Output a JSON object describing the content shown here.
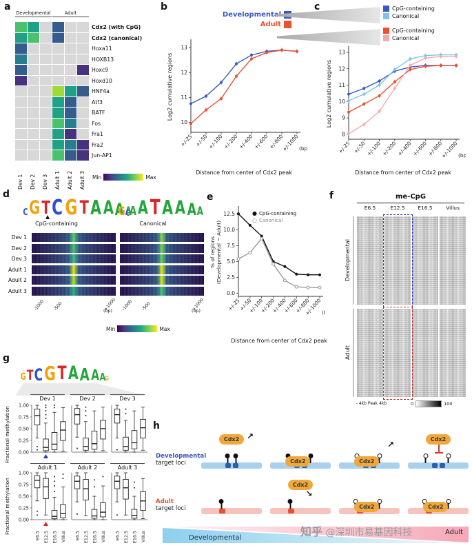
{
  "watermark": {
    "brand": "知乎",
    "text": " @深圳市易基因科技"
  },
  "panel_a": {
    "label": "a",
    "groups": [
      {
        "name": "Developmental",
        "span": 3
      },
      {
        "name": "Adult",
        "span": 3
      }
    ],
    "col_labels": [
      "Dev 1",
      "Dev 2",
      "Dev 3",
      "Adult 1",
      "Adult 2",
      "Adult 3"
    ],
    "row_labels": [
      "Cdx2 (with CpG)",
      "Cdx2 (canonical)",
      "Hoxa11",
      "HOXB13",
      "Hoxc9",
      "Hoxd10",
      "HNF4a",
      "Atf3",
      "BATF",
      "Fos",
      "Fra1",
      "Fra2",
      "Jun-AP1"
    ],
    "bold_rows": [
      0,
      1
    ],
    "cells": [
      [
        "#4ac16d",
        "#1fa187",
        "#d8d8d8",
        "#365c8d",
        "#d8d8d8",
        "#d8d8d8"
      ],
      [
        "#1fa187",
        "#4ac16d",
        "#d8d8d8",
        "#365c8d",
        "#d8d8d8",
        "#d8d8d8"
      ],
      [
        "#365c8d",
        "#d8d8d8",
        "#d8d8d8",
        "#d8d8d8",
        "#d8d8d8",
        "#d8d8d8"
      ],
      [
        "#277f8e",
        "#d8d8d8",
        "#d8d8d8",
        "#d8d8d8",
        "#d8d8d8",
        "#d8d8d8"
      ],
      [
        "#365c8d",
        "#d8d8d8",
        "#d8d8d8",
        "#d8d8d8",
        "#d8d8d8",
        "#46327e"
      ],
      [
        "#46327e",
        "#d8d8d8",
        "#d8d8d8",
        "#d8d8d8",
        "#d8d8d8",
        "#d8d8d8"
      ],
      [
        "#d8d8d8",
        "#d8d8d8",
        "#d8d8d8",
        "#a0da39",
        "#1fa187",
        "#365c8d"
      ],
      [
        "#d8d8d8",
        "#d8d8d8",
        "#d8d8d8",
        "#1fa187",
        "#365c8d",
        "#d8d8d8"
      ],
      [
        "#d8d8d8",
        "#d8d8d8",
        "#d8d8d8",
        "#1fa187",
        "#365c8d",
        "#d8d8d8"
      ],
      [
        "#d8d8d8",
        "#d8d8d8",
        "#d8d8d8",
        "#4ac16d",
        "#277f8e",
        "#d8d8d8"
      ],
      [
        "#d8d8d8",
        "#d8d8d8",
        "#d8d8d8",
        "#1fa187",
        "#46327e",
        "#d8d8d8"
      ],
      [
        "#d8d8d8",
        "#d8d8d8",
        "#d8d8d8",
        "#1fa187",
        "#277f8e",
        "#46327e"
      ],
      [
        "#d8d8d8",
        "#d8d8d8",
        "#d8d8d8",
        "#4ac16d",
        "#365c8d",
        "#46327e"
      ]
    ],
    "legend": {
      "min": "Min",
      "max": "Max"
    }
  },
  "panel_b": {
    "label": "b",
    "legend": [
      {
        "name": "Developmental",
        "color": "#3a57c4"
      },
      {
        "name": "Adult",
        "color": "#e8502e"
      }
    ],
    "chart": {
      "type": "line",
      "x_labels": [
        "+/-25",
        "+/-50",
        "+/-100",
        "+/-200",
        "+/-400",
        "+/-600",
        "+/-800",
        "+/-1000"
      ],
      "x_unit": "(bp)",
      "xlabel": "Distance from center of Cdx2 peak",
      "ylabel": "Log2 cumulative regions",
      "yticks": [
        10,
        11,
        12,
        13
      ],
      "ylim": [
        9.6,
        13.25
      ],
      "series": [
        {
          "name": "Developmental",
          "color": "#3a57c4",
          "values": [
            10.75,
            11.05,
            11.6,
            12.35,
            12.7,
            12.85,
            12.9,
            12.85
          ]
        },
        {
          "name": "Adult",
          "color": "#e8502e",
          "values": [
            9.95,
            10.5,
            10.95,
            11.85,
            12.55,
            12.8,
            12.9,
            12.85
          ]
        }
      ]
    }
  },
  "panel_c": {
    "label": "c",
    "legend_groups": [
      {
        "items": [
          {
            "name": "CpG-containing",
            "color": "#3a57c4"
          },
          {
            "name": "Canonical",
            "color": "#7fc3e8"
          }
        ]
      },
      {
        "items": [
          {
            "name": "CpG-containing",
            "color": "#e8502e"
          },
          {
            "name": "Canonical",
            "color": "#f4a9ad"
          }
        ]
      }
    ],
    "chart": {
      "type": "line",
      "x_labels": [
        "+/-25",
        "+/-50",
        "+/-100",
        "+/-200",
        "+/-400",
        "+/-600",
        "+/-800",
        "+/-1000"
      ],
      "x_unit": "(bp)",
      "xlabel": "Distance from center of Cdx2 peak",
      "ylabel": "Log2 cumulative regions",
      "yticks": [
        8,
        9,
        10,
        11,
        12,
        13
      ],
      "ylim": [
        7.7,
        13.25
      ],
      "series": [
        {
          "name": "Developmental CpG-containing",
          "color": "#3a57c4",
          "values": [
            10.45,
            10.8,
            11.25,
            11.85,
            12.1,
            12.2,
            12.2,
            12.2
          ]
        },
        {
          "name": "Developmental Canonical",
          "color": "#7fc3e8",
          "values": [
            10.05,
            10.45,
            11.0,
            11.95,
            12.6,
            12.8,
            12.85,
            12.85
          ]
        },
        {
          "name": "Adult CpG-containing",
          "color": "#e8502e",
          "values": [
            9.35,
            9.85,
            10.35,
            11.2,
            11.95,
            12.15,
            12.2,
            12.2
          ]
        },
        {
          "name": "Adult Canonical",
          "color": "#f4a9ad",
          "values": [
            8.05,
            8.6,
            9.4,
            10.8,
            12.2,
            12.65,
            12.75,
            12.75
          ]
        }
      ]
    }
  },
  "panel_d": {
    "label": "d",
    "marker_glyph": "▲",
    "letter_colors": {
      "A": "#23a539",
      "C": "#2a4fd4",
      "G": "#f2a10a",
      "T": "#d62828"
    },
    "logos": [
      {
        "name": "CpG-containing",
        "marker": true,
        "letters": [
          [
            "C",
            0.45
          ],
          [
            "G",
            0.9
          ],
          [
            "T",
            0.85
          ],
          [
            "C",
            1.0
          ],
          [
            "G",
            1.0
          ],
          [
            "T",
            0.9
          ],
          [
            "A",
            0.95
          ],
          [
            "A",
            0.9
          ],
          [
            "A",
            0.8
          ],
          [
            "A",
            0.55
          ]
        ]
      },
      {
        "name": "Canonical",
        "marker": false,
        "letters": [
          [
            "G",
            0.55
          ],
          [
            "C",
            0.4
          ],
          [
            "A",
            0.6
          ],
          [
            "A",
            0.9
          ],
          [
            "T",
            1.0
          ],
          [
            "A",
            0.95
          ],
          [
            "A",
            0.9
          ],
          [
            "A",
            0.8
          ],
          [
            "A",
            0.55
          ]
        ]
      }
    ],
    "row_labels": [
      "Dev 1",
      "Dev 2",
      "Dev 3",
      "Adult 1",
      "Adult 2",
      "Adult 3"
    ],
    "blocks": [
      {
        "centers": [
          "#54c568",
          "#44bf70",
          "#3fb489",
          "#d2e21b",
          "#a5db36",
          "#28ae80"
        ]
      },
      {
        "centers": [
          "#7ad151",
          "#6ece58",
          "#5ec962",
          "#d2e21b",
          "#c8e020",
          "#44bf70"
        ]
      }
    ],
    "x_ticks": [
      "-1000",
      "-500",
      "+1000"
    ],
    "x_tick_pos": [
      0.02,
      0.26,
      0.88
    ],
    "x_unit": "(bp)",
    "legend": {
      "min": "Min",
      "max": "Max"
    }
  },
  "panel_e": {
    "label": "e",
    "chart": {
      "type": "line",
      "x_labels": [
        "+/-25",
        "+/-50",
        "+/-100",
        "+/-200",
        "+/-400",
        "+/-600",
        "+/-800",
        "+/-1000"
      ],
      "x_unit": "(bp)",
      "xlabel": "Distance from center of Cdx2 peak",
      "ylabel_lines": [
        "% of regions",
        "(Developmental − Adult)"
      ],
      "yticks": [
        0,
        2.5,
        5,
        7.5,
        10,
        12.5
      ],
      "ylim": [
        -0.5,
        13.4
      ],
      "series": [
        {
          "name": "CpG-containing",
          "color": "#111111",
          "marker": "filled",
          "values": [
            12.5,
            10.7,
            9.0,
            5.0,
            4.2,
            3.0,
            2.9,
            2.9
          ]
        },
        {
          "name": "Canonical",
          "color": "#999999",
          "marker": "open",
          "values": [
            5.4,
            6.4,
            8.6,
            4.6,
            2.0,
            1.0,
            0.9,
            0.9
          ]
        }
      ]
    },
    "legend": [
      {
        "name": "CpG-containing",
        "mark": "●",
        "color": "#111111"
      },
      {
        "name": "Canonical",
        "mark": "○",
        "color": "#888888"
      }
    ]
  },
  "panel_f": {
    "label": "f",
    "title": "me-CpG",
    "col_labels": [
      "E6.5",
      "E12.5",
      "E16.5",
      "Villus"
    ],
    "row_groups": [
      "Developmental",
      "Adult"
    ],
    "axis_label": "- 4kb   Peak   4kb",
    "colorbar": {
      "min": "0",
      "max": "100"
    },
    "highlight_colors": {
      "dev": "#2233cc",
      "adult": "#cc2222"
    }
  },
  "panel_g": {
    "label": "g",
    "logo_letters": [
      [
        "G",
        0.5
      ],
      [
        "T",
        0.7
      ],
      [
        "C",
        0.85
      ],
      [
        "G",
        1.0
      ],
      [
        "T",
        0.95
      ],
      [
        "A",
        0.95
      ],
      [
        "A",
        0.9
      ],
      [
        "A",
        0.75
      ],
      [
        "A",
        0.55
      ],
      [
        "G",
        0.35
      ]
    ],
    "ylabel": "Fractional methylation",
    "yticks": [
      "1.00",
      "0.75",
      "0.50",
      "0.25",
      "0.00"
    ],
    "x_labels": [
      "E6.5",
      "E12.5",
      "E16.5",
      "Villus"
    ],
    "rows": [
      {
        "panels": [
          {
            "name": "Dev 1",
            "marker_color": "#2438c8",
            "boxes": [
              [
                0.3,
                0.58,
                0.78,
                0.92,
                1.0
              ],
              [
                0.0,
                0.03,
                0.1,
                0.28,
                0.62
              ],
              [
                0.0,
                0.05,
                0.17,
                0.42,
                0.85
              ],
              [
                0.02,
                0.25,
                0.47,
                0.65,
                0.95
              ]
            ],
            "outliers": [
              [
                0.12,
                0.05
              ],
              [
                0.72,
                0.8,
                0.88,
                0.95,
                1.0
              ],
              [
                0.95,
                1.0
              ],
              []
            ]
          },
          {
            "name": "Dev 2",
            "boxes": [
              [
                0.32,
                0.6,
                0.8,
                0.93,
                1.0
              ],
              [
                0.0,
                0.04,
                0.12,
                0.3,
                0.65
              ],
              [
                0.0,
                0.06,
                0.18,
                0.45,
                0.88
              ],
              [
                0.03,
                0.28,
                0.5,
                0.68,
                0.96
              ]
            ],
            "outliers": [
              [
                0.08
              ],
              [
                0.78,
                0.88,
                0.96
              ],
              [],
              []
            ]
          },
          {
            "name": "Dev 3",
            "boxes": [
              [
                0.3,
                0.62,
                0.8,
                0.92,
                1.0
              ],
              [
                0.0,
                0.04,
                0.12,
                0.32,
                0.68
              ],
              [
                0.0,
                0.07,
                0.2,
                0.46,
                0.88
              ],
              [
                0.04,
                0.3,
                0.52,
                0.7,
                0.96
              ]
            ],
            "outliers": [
              [
                0.05
              ],
              [
                0.82,
                0.92
              ],
              [],
              []
            ]
          }
        ]
      },
      {
        "panels": [
          {
            "name": "Adult 1",
            "marker_color": "#d42a20",
            "boxes": [
              [
                0.4,
                0.68,
                0.84,
                0.94,
                1.0
              ],
              [
                0.1,
                0.45,
                0.7,
                0.88,
                1.0
              ],
              [
                0.0,
                0.02,
                0.07,
                0.2,
                0.48
              ],
              [
                0.0,
                0.04,
                0.13,
                0.32,
                0.7
              ]
            ],
            "outliers": [
              [
                0.18,
                0.1
              ],
              [],
              [
                0.6,
                0.72,
                0.82,
                0.92
              ],
              [
                0.88,
                0.97
              ]
            ]
          },
          {
            "name": "Adult 2",
            "boxes": [
              [
                0.38,
                0.66,
                0.82,
                0.93,
                1.0
              ],
              [
                0.08,
                0.42,
                0.66,
                0.86,
                1.0
              ],
              [
                0.0,
                0.03,
                0.08,
                0.22,
                0.5
              ],
              [
                0.0,
                0.06,
                0.16,
                0.36,
                0.72
              ]
            ],
            "outliers": [
              [
                0.12
              ],
              [],
              [
                0.7,
                0.85
              ],
              [
                0.92
              ]
            ]
          },
          {
            "name": "Adult 3",
            "boxes": [
              [
                0.38,
                0.66,
                0.82,
                0.93,
                1.0
              ],
              [
                0.1,
                0.44,
                0.68,
                0.86,
                1.0
              ],
              [
                0.0,
                0.03,
                0.09,
                0.22,
                0.5
              ],
              [
                0.02,
                0.2,
                0.4,
                0.6,
                0.88
              ]
            ],
            "outliers": [
              [
                0.1
              ],
              [],
              [
                0.68,
                0.8
              ],
              []
            ]
          }
        ]
      }
    ]
  },
  "panel_h": {
    "label": "h",
    "cdx2": {
      "label": "Cdx2",
      "fill": "#f0a83c"
    },
    "rows": [
      {
        "title": "Developmental",
        "title_color": "#3a57c4",
        "subtitle": "target loci",
        "bar": "#a9d1ee",
        "seg": "#2b5fac",
        "segments": [
          [
            40,
            9
          ],
          [
            52,
            9
          ]
        ],
        "scenes": [
          {
            "cdx2": "above",
            "arrow": "away",
            "lollipops": [
              [
                44,
                1
              ],
              [
                57,
                1
              ]
            ]
          },
          {
            "cdx2": "bound",
            "arrow": "",
            "lollipops": [
              [
                30,
                1
              ],
              [
                66,
                1
              ]
            ]
          },
          {
            "cdx2": "bound",
            "arrow": "up",
            "lollipops": [
              [
                30,
                0
              ],
              [
                66,
                0
              ]
            ]
          },
          {
            "cdx2": "above",
            "arrow": "repress",
            "lollipops": [
              [
                30,
                0
              ],
              [
                66,
                0
              ]
            ]
          }
        ]
      },
      {
        "title": "Adult",
        "title_color": "#e8502e",
        "subtitle": "target loci",
        "bar": "#f6c4bc",
        "seg": "#e8502e",
        "segments": [
          [
            30,
            10
          ]
        ],
        "scenes": [
          {
            "cdx2": "none",
            "arrow": "",
            "lollipops": [
              [
                34,
                1
              ]
            ]
          },
          {
            "cdx2": "above",
            "arrow": "toward",
            "lollipops": [
              [
                34,
                1
              ]
            ]
          },
          {
            "cdx2": "bound",
            "arrow": "",
            "lollipops": [
              [
                28,
                0
              ],
              [
                66,
                0
              ]
            ]
          },
          {
            "cdx2": "bound",
            "arrow": "",
            "lollipops": [
              [
                28,
                0
              ],
              [
                66,
                0
              ]
            ]
          }
        ]
      }
    ],
    "wedges": [
      {
        "label": "Developmental",
        "color": "#8ed0ee"
      },
      {
        "label": "Adult",
        "color": "#f6a8b8"
      }
    ]
  }
}
